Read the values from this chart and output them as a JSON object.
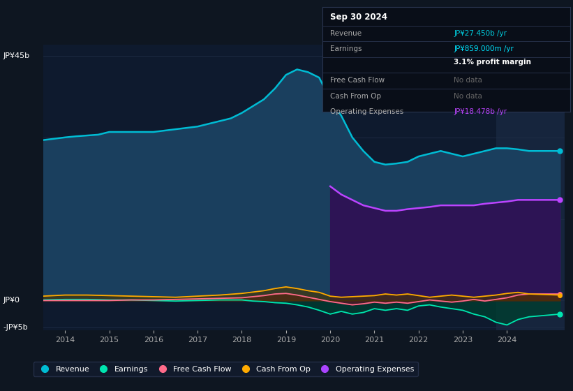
{
  "bg_color": "#0e1621",
  "chart_bg": "#0e1a2e",
  "grid_color": "#1e2d45",
  "title_date": "Sep 30 2024",
  "info_box": {
    "Revenue_label": "Revenue",
    "Revenue_value": "JP¥27.450b /yr",
    "Revenue_color": "#00ccdd",
    "Earnings_label": "Earnings",
    "Earnings_value": "JP¥859.000m /yr",
    "Earnings_color": "#00e5ff",
    "profit_margin": "3.1% profit margin",
    "FreeCashFlow_label": "Free Cash Flow",
    "FreeCashFlow_value": "No data",
    "FreeCashFlow_color": "#666666",
    "CashFromOp_label": "Cash From Op",
    "CashFromOp_value": "No data",
    "CashFromOp_color": "#666666",
    "OpExp_label": "Operating Expenses",
    "OpExp_value": "JP¥18.478b /yr",
    "OpExp_color": "#bb44ff"
  },
  "ylim": [
    -5.5,
    47
  ],
  "xlim_start": 2013.5,
  "xlim_end": 2025.3,
  "forecast_start": 2023.75,
  "xticks": [
    2014,
    2015,
    2016,
    2017,
    2018,
    2019,
    2020,
    2021,
    2022,
    2023,
    2024
  ],
  "legend": [
    {
      "label": "Revenue",
      "color": "#00bcd4"
    },
    {
      "label": "Earnings",
      "color": "#00e5b0"
    },
    {
      "label": "Free Cash Flow",
      "color": "#ff6b8a"
    },
    {
      "label": "Cash From Op",
      "color": "#ffaa00"
    },
    {
      "label": "Operating Expenses",
      "color": "#aa44ff"
    }
  ],
  "revenue_color": "#00bcd4",
  "revenue_fill": "#1a3f5e",
  "op_expenses_color": "#bb44ff",
  "op_expenses_fill": "#2d1455",
  "earnings_color": "#00e5b0",
  "earnings_fill": "#003d30",
  "fcf_color": "#ff6b8a",
  "fcf_fill": "#5a1525",
  "cfo_color": "#ffaa00",
  "cfo_fill": "#4a3500"
}
